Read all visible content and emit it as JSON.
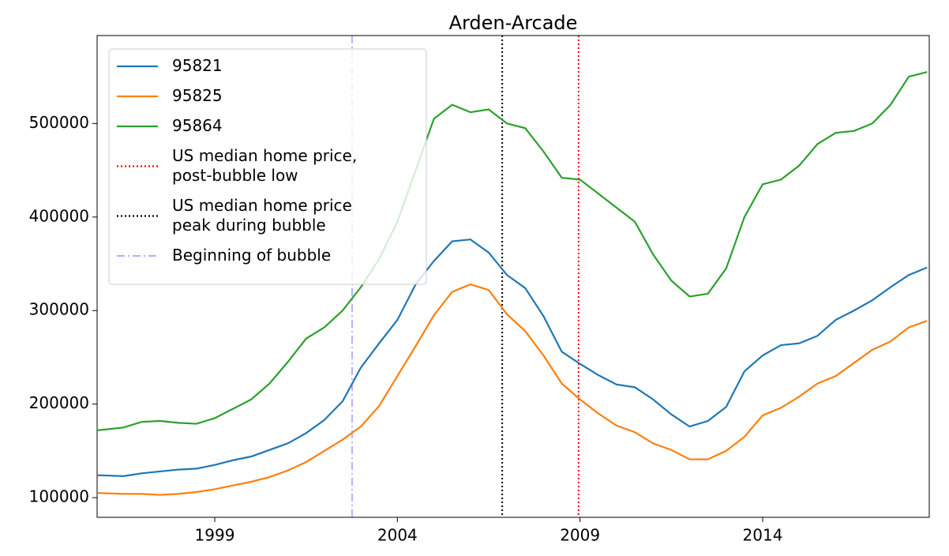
{
  "chart_data": {
    "type": "line",
    "title": "Arden-Arcade",
    "x": [
      1995.8,
      1996.5,
      1997,
      1997.5,
      1998,
      1998.5,
      1999,
      1999.5,
      2000,
      2000.5,
      2001,
      2001.5,
      2002,
      2002.5,
      2003,
      2003.5,
      2004,
      2004.5,
      2005,
      2005.5,
      2006,
      2006.5,
      2007,
      2007.5,
      2008,
      2008.5,
      2009,
      2009.5,
      2010,
      2010.5,
      2011,
      2011.5,
      2012,
      2012.5,
      2013,
      2013.5,
      2014,
      2014.5,
      2015,
      2015.5,
      2016,
      2016.5,
      2017,
      2017.5,
      2018,
      2018.5
    ],
    "series": [
      {
        "name": "95821",
        "color": "#1f77b4",
        "values": [
          124000,
          123000,
          126000,
          128000,
          130000,
          131000,
          135000,
          140000,
          144000,
          151000,
          158000,
          169000,
          183000,
          203000,
          239000,
          265000,
          290000,
          328000,
          353000,
          374000,
          376000,
          362000,
          338000,
          324000,
          294000,
          256000,
          243000,
          231000,
          221000,
          218000,
          205000,
          189000,
          176000,
          182000,
          197000,
          235000,
          252000,
          263000,
          265000,
          273000,
          290000,
          300000,
          311000,
          325000,
          338000,
          346000
        ]
      },
      {
        "name": "95825",
        "color": "#ff7f0e",
        "values": [
          105000,
          104000,
          104000,
          103000,
          104000,
          106000,
          109000,
          113000,
          117000,
          122000,
          129000,
          138000,
          150000,
          162000,
          176000,
          198000,
          230000,
          262000,
          295000,
          320000,
          328000,
          322000,
          296000,
          278000,
          252000,
          222000,
          205000,
          190000,
          177000,
          170000,
          158000,
          151000,
          141000,
          141000,
          150000,
          165000,
          188000,
          196000,
          208000,
          222000,
          230000,
          244000,
          258000,
          267000,
          282000,
          289000
        ]
      },
      {
        "name": "95864",
        "color": "#2ca02c",
        "values": [
          172000,
          175000,
          181000,
          182000,
          180000,
          179000,
          185000,
          195000,
          205000,
          222000,
          245000,
          270000,
          282000,
          300000,
          325000,
          355000,
          395000,
          450000,
          505000,
          520000,
          512000,
          515000,
          500000,
          495000,
          470000,
          442000,
          440000,
          425000,
          410000,
          395000,
          360000,
          332000,
          315000,
          318000,
          345000,
          400000,
          435000,
          440000,
          455000,
          478000,
          490000,
          492000,
          500000,
          520000,
          550000,
          555000
        ]
      }
    ],
    "reference_lines": [
      {
        "name": "US median home price,\npost-bubble low",
        "x": 2008.96,
        "color": "#ff0000",
        "dash": "2,3"
      },
      {
        "name": "US median home price\npeak during bubble",
        "x": 2006.87,
        "color": "#000000",
        "dash": "2,3"
      },
      {
        "name": "Beginning of bubble",
        "x": 2002.76,
        "color": "#b3b3ff",
        "dash": "10,4,2,4"
      }
    ],
    "xlim": [
      1995.78,
      2018.56
    ],
    "xticks": [
      1999,
      2004,
      2009,
      2014
    ],
    "ylim": [
      79000,
      594000
    ],
    "yticks": [
      100000,
      200000,
      300000,
      400000,
      500000
    ],
    "legend": "upper left"
  }
}
